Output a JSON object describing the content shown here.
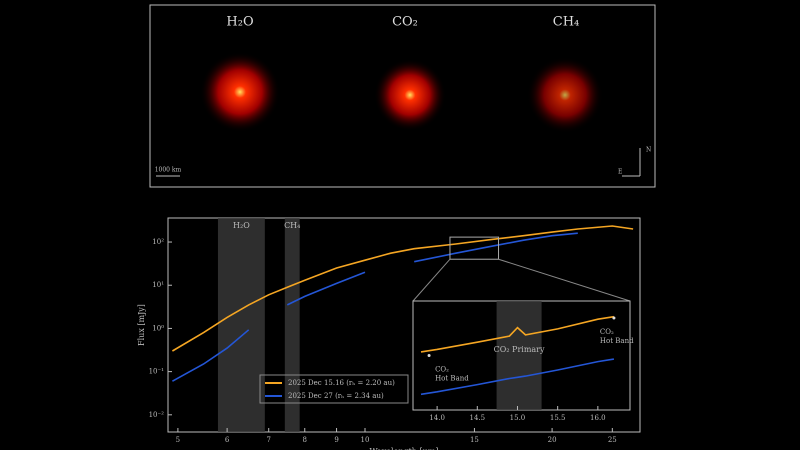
{
  "images": {
    "panels": [
      {
        "label": "H₂O"
      },
      {
        "label": "CO₂"
      },
      {
        "label": "CH₄"
      }
    ],
    "scale_bar": "1000 km",
    "compass": [
      "N",
      "E"
    ]
  },
  "chart_data": [
    {
      "type": "line",
      "xlabel": "Wavelength [µm]",
      "ylabel": "Flux [mJy]",
      "xlog": true,
      "ylog": true,
      "xlim": [
        4.82,
        27.7
      ],
      "ylim": [
        0.004,
        360
      ],
      "xticks": [
        5,
        6,
        7,
        8,
        9,
        10,
        15,
        20,
        25
      ],
      "yticks": [
        {
          "value": 0.01,
          "label": "10⁻²"
        },
        {
          "value": 0.1,
          "label": "10⁻¹"
        },
        {
          "value": 1,
          "label": "10⁰"
        },
        {
          "value": 10,
          "label": "10¹"
        },
        {
          "value": 100,
          "label": "10²"
        }
      ],
      "bands": [
        {
          "label": "H₂O",
          "range": [
            5.8,
            6.9
          ]
        },
        {
          "label": "CH₄",
          "range": [
            7.43,
            7.85
          ]
        }
      ],
      "legend": "lower right",
      "x": [
        4.9,
        5.5,
        6,
        6.5,
        7,
        7.5,
        8,
        9,
        10,
        11,
        12,
        14,
        16,
        18,
        20,
        22,
        25,
        27
      ],
      "series": [
        {
          "name": "2025 Dec 15.16 (rₕ = 2.20 au)",
          "color": "#f5a623",
          "values": [
            0.3,
            0.8,
            1.8,
            3.5,
            6,
            9,
            13,
            25,
            38,
            55,
            70,
            90,
            115,
            140,
            170,
            200,
            235,
            200
          ]
        },
        {
          "name": "2025 Dec 27 (rₕ = 2.34 au)",
          "color": "#2456d6",
          "values": [
            0.06,
            0.15,
            0.35,
            0.93,
            null,
            3.5,
            5.5,
            11,
            20,
            null,
            35,
            55,
            80,
            110,
            140,
            160,
            null,
            null
          ]
        }
      ]
    },
    {
      "type": "line",
      "xlim": [
        13.7,
        16.4
      ],
      "ylim": [
        40,
        130
      ],
      "xticks": [
        {
          "value": 14,
          "label": "14.0"
        },
        {
          "value": 14.5,
          "label": "14.5"
        },
        {
          "value": 15,
          "label": "15.0"
        },
        {
          "value": 15.5,
          "label": "15.5"
        },
        {
          "value": 16,
          "label": "16.0"
        }
      ],
      "bands": [
        {
          "label": "CO₂ Primary",
          "range": [
            14.74,
            15.3
          ]
        }
      ],
      "annotations": [
        {
          "lines": [
            "CO₂",
            "Hot Band"
          ],
          "x": 13.9,
          "y": 85
        },
        {
          "lines": [
            "CO₂",
            "Hot Band"
          ],
          "x": 16.2,
          "y": 116
        }
      ],
      "x": [
        13.8,
        14,
        14.5,
        14.9,
        15,
        15.1,
        15.5,
        16,
        16.2
      ],
      "series": [
        {
          "color": "#f5a623",
          "values": [
            88,
            90,
            96,
            101,
            108,
            102,
            107,
            115,
            117
          ]
        },
        {
          "color": "#2456d6",
          "values": [
            53,
            55,
            61,
            66,
            67,
            68,
            73,
            80,
            82
          ]
        }
      ]
    }
  ]
}
